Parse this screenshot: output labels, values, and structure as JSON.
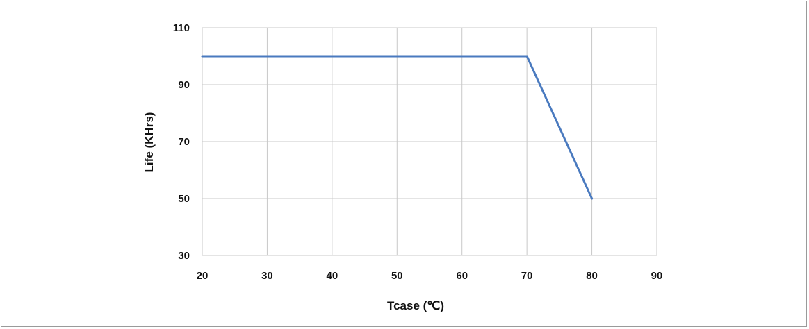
{
  "chart_data": {
    "type": "line",
    "xlabel": "Tcase (℃)",
    "ylabel": "Life (KHrs)",
    "xlim": [
      20,
      90
    ],
    "ylim": [
      30,
      110
    ],
    "x_ticks": [
      "20",
      "30",
      "40",
      "50",
      "60",
      "70",
      "80",
      "90"
    ],
    "y_ticks": [
      "30",
      "50",
      "70",
      "90",
      "110"
    ],
    "grid": true,
    "series": [
      {
        "color": "#4a7abf",
        "points": [
          {
            "x": 20,
            "y": 100
          },
          {
            "x": 70,
            "y": 100
          },
          {
            "x": 80,
            "y": 50
          }
        ]
      }
    ]
  }
}
